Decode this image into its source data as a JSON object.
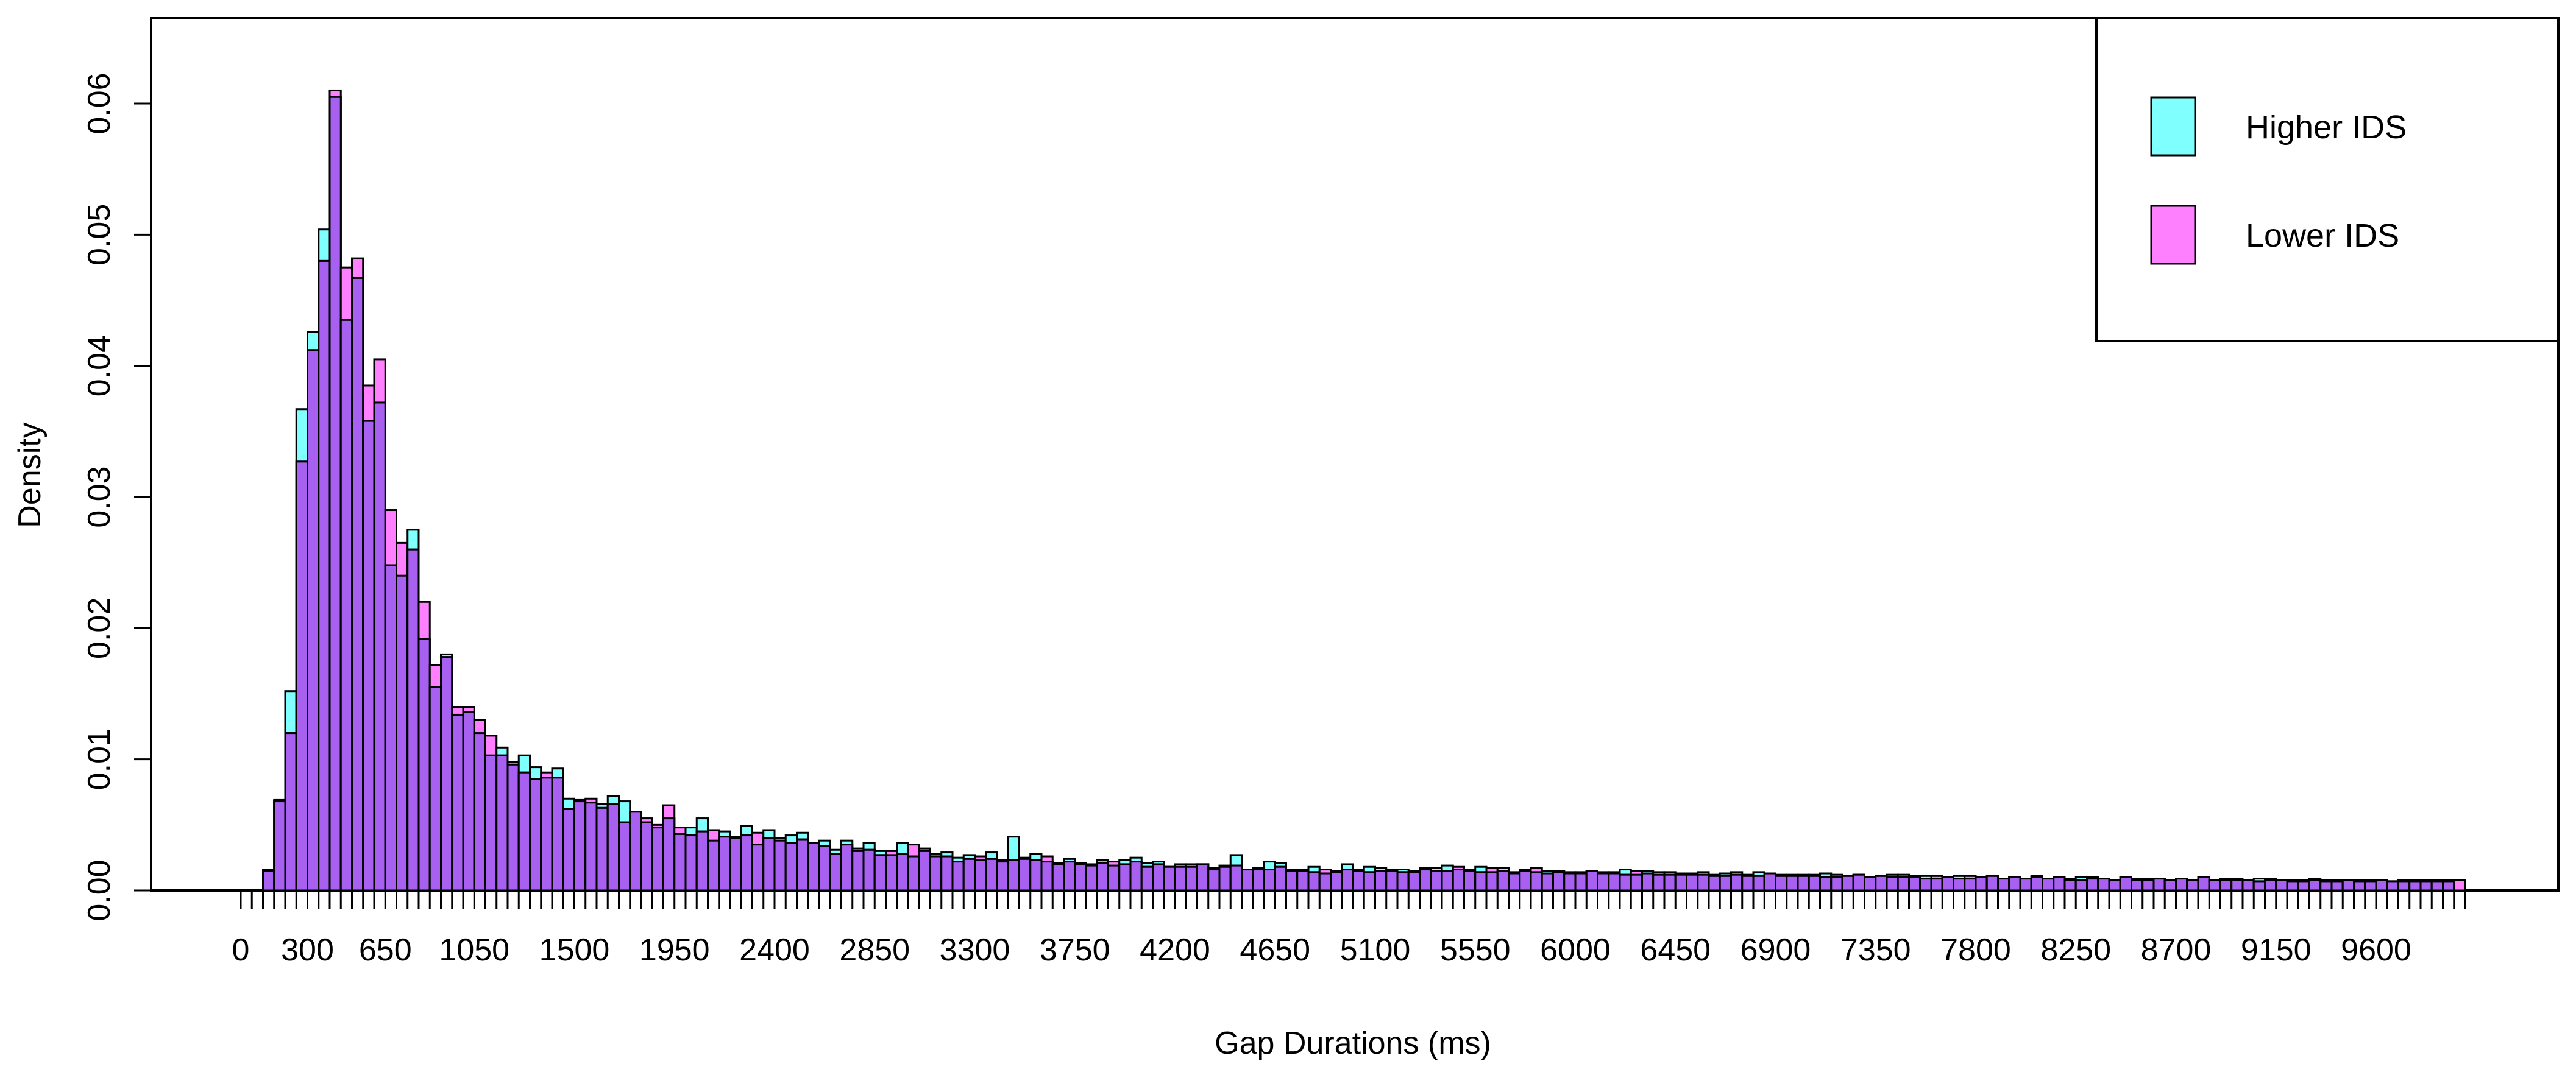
{
  "chart_data": {
    "type": "bar",
    "xlabel": "Gap Durations (ms)",
    "ylabel": "Density",
    "xlim": [
      0,
      10000
    ],
    "ylim": [
      0,
      0.065
    ],
    "bin_width": 50,
    "x_tick_labels": [
      "0",
      "300",
      "650",
      "1050",
      "1500",
      "1950",
      "2400",
      "2850",
      "3300",
      "3750",
      "4200",
      "4650",
      "5100",
      "5550",
      "6000",
      "6450",
      "6900",
      "7350",
      "7800",
      "8250",
      "8700",
      "9150",
      "9600"
    ],
    "y_tick_labels": [
      "0.00",
      "0.01",
      "0.02",
      "0.03",
      "0.04",
      "0.05",
      "0.06"
    ],
    "legend_position": "top-right",
    "series": [
      {
        "name": "Higher IDS",
        "color": "#80ffff",
        "values": [
          0,
          0,
          0.0015,
          0.0068,
          0.0152,
          0.0367,
          0.0426,
          0.0504,
          0.0605,
          0.0435,
          0.0467,
          0.0358,
          0.0372,
          0.0248,
          0.024,
          0.0275,
          0.0192,
          0.0155,
          0.018,
          0.0134,
          0.0136,
          0.012,
          0.0103,
          0.0109,
          0.0096,
          0.0103,
          0.0094,
          0.0086,
          0.0093,
          0.007,
          0.0068,
          0.0067,
          0.0066,
          0.0072,
          0.0068,
          0.006,
          0.0052,
          0.0048,
          0.0055,
          0.0043,
          0.0048,
          0.0055,
          0.0038,
          0.0045,
          0.0041,
          0.0049,
          0.0035,
          0.0046,
          0.0038,
          0.0042,
          0.0044,
          0.0036,
          0.0038,
          0.0031,
          0.0038,
          0.0032,
          0.0036,
          0.003,
          0.0027,
          0.0036,
          0.0026,
          0.0032,
          0.0026,
          0.0029,
          0.0025,
          0.0027,
          0.0023,
          0.0029,
          0.0022,
          0.0041,
          0.0024,
          0.0028,
          0.0022,
          0.0021,
          0.0024,
          0.002,
          0.0019,
          0.0021,
          0.0019,
          0.0023,
          0.0025,
          0.0021,
          0.0022,
          0.0018,
          0.0018,
          0.002,
          0.002,
          0.0016,
          0.0019,
          0.0027,
          0.0016,
          0.0016,
          0.0022,
          0.0021,
          0.0015,
          0.0016,
          0.0018,
          0.0013,
          0.0015,
          0.002,
          0.0016,
          0.0018,
          0.0017,
          0.0015,
          0.0016,
          0.0014,
          0.0016,
          0.0017,
          0.0019,
          0.0016,
          0.0015,
          0.0018,
          0.0014,
          0.0017,
          0.0013,
          0.0016,
          0.0014,
          0.0015,
          0.0014,
          0.0013,
          0.0014,
          0.0015,
          0.0013,
          0.0014,
          0.0016,
          0.0012,
          0.0015,
          0.0014,
          0.0012,
          0.0012,
          0.0013,
          0.0012,
          0.0011,
          0.0013,
          0.0012,
          0.0011,
          0.0014,
          0.0013,
          0.0011,
          0.0012,
          0.0011,
          0.0012,
          0.0013,
          0.001,
          0.0011,
          0.0012,
          0.001,
          0.0011,
          0.001,
          0.0012,
          0.001,
          0.0011,
          0.0009,
          0.001,
          0.0011,
          0.0009,
          0.001,
          0.0011,
          0.0009,
          0.001,
          0.0009,
          0.0011,
          0.0009,
          0.001,
          0.0008,
          0.001,
          0.0009,
          0.0009,
          0.0008,
          0.001,
          0.0009,
          0.0008,
          0.0009,
          0.0008,
          0.0009,
          0.0008,
          0.001,
          0.0008,
          0.0009,
          0.0008,
          0.0008,
          0.0009,
          0.0008,
          0.0008,
          0.0007,
          0.0008,
          0.0008,
          0.0007,
          0.0008,
          0.0008,
          0.0007,
          0.0008,
          0.0008,
          0.0007,
          0.0007,
          0.0008,
          0.0007,
          0.0008,
          0.0007
        ]
      },
      {
        "name": "Lower IDS",
        "color": "#ff80ff",
        "values": [
          0,
          0,
          0.0016,
          0.0069,
          0.012,
          0.0327,
          0.0412,
          0.048,
          0.061,
          0.0475,
          0.0482,
          0.0385,
          0.0405,
          0.029,
          0.0265,
          0.026,
          0.022,
          0.0172,
          0.0178,
          0.014,
          0.014,
          0.013,
          0.0118,
          0.0103,
          0.0098,
          0.009,
          0.0085,
          0.009,
          0.0086,
          0.0062,
          0.0069,
          0.007,
          0.0063,
          0.0066,
          0.0052,
          0.006,
          0.0055,
          0.005,
          0.0065,
          0.0048,
          0.0042,
          0.0045,
          0.0046,
          0.0041,
          0.004,
          0.0042,
          0.0044,
          0.004,
          0.004,
          0.0036,
          0.0039,
          0.0036,
          0.0034,
          0.0028,
          0.0035,
          0.003,
          0.0031,
          0.0027,
          0.003,
          0.0028,
          0.0035,
          0.003,
          0.0028,
          0.0026,
          0.0022,
          0.0024,
          0.0026,
          0.0024,
          0.0023,
          0.0023,
          0.0025,
          0.0023,
          0.0026,
          0.002,
          0.0022,
          0.0021,
          0.002,
          0.0023,
          0.0022,
          0.002,
          0.0022,
          0.0018,
          0.002,
          0.0018,
          0.002,
          0.0018,
          0.002,
          0.0017,
          0.0018,
          0.0019,
          0.0016,
          0.0017,
          0.0016,
          0.0018,
          0.0016,
          0.0015,
          0.0014,
          0.0016,
          0.0014,
          0.0016,
          0.0015,
          0.0014,
          0.0015,
          0.0016,
          0.0014,
          0.0015,
          0.0017,
          0.0015,
          0.0015,
          0.0018,
          0.0016,
          0.0014,
          0.0017,
          0.0015,
          0.0014,
          0.0015,
          0.0017,
          0.0013,
          0.0015,
          0.0014,
          0.0013,
          0.0015,
          0.0014,
          0.0013,
          0.0012,
          0.0015,
          0.0013,
          0.0012,
          0.0014,
          0.0013,
          0.0012,
          0.0014,
          0.0012,
          0.0011,
          0.0014,
          0.0012,
          0.0011,
          0.0013,
          0.0012,
          0.0011,
          0.0012,
          0.0011,
          0.001,
          0.0012,
          0.0011,
          0.0012,
          0.001,
          0.0011,
          0.0012,
          0.001,
          0.0011,
          0.0009,
          0.0011,
          0.001,
          0.0009,
          0.0011,
          0.001,
          0.0011,
          0.0009,
          0.001,
          0.0009,
          0.001,
          0.0009,
          0.001,
          0.0009,
          0.0008,
          0.001,
          0.0009,
          0.0008,
          0.001,
          0.0008,
          0.0009,
          0.0009,
          0.0008,
          0.0009,
          0.0008,
          0.001,
          0.0008,
          0.0008,
          0.0009,
          0.0008,
          0.0007,
          0.0009,
          0.0008,
          0.0008,
          0.0007,
          0.0009,
          0.0008,
          0.0007,
          0.0008,
          0.0008,
          0.0007,
          0.0008,
          0.0007,
          0.0008,
          0.0007,
          0.0008,
          0.0007,
          0.0008,
          0.0008
        ]
      }
    ],
    "overlap_color": "#a860f0",
    "grid": false
  }
}
